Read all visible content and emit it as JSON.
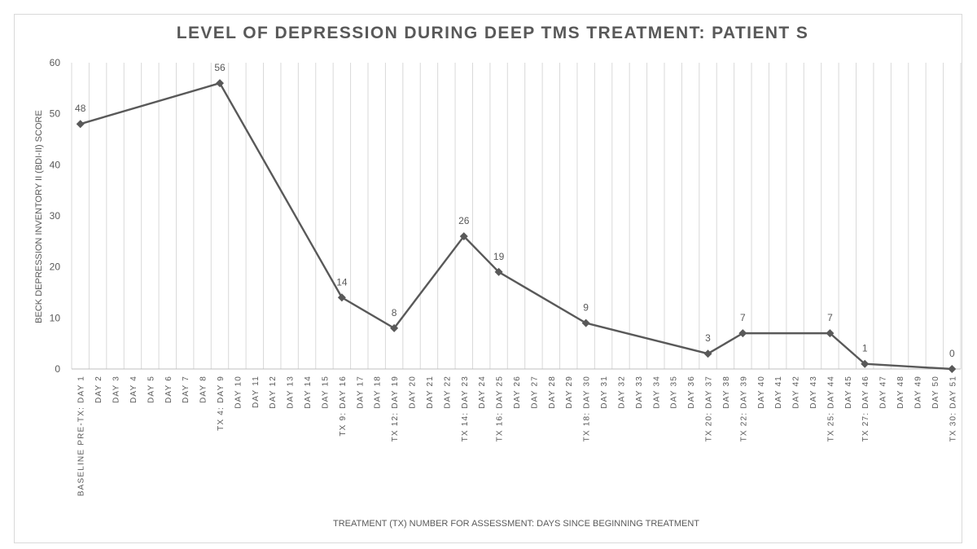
{
  "chart_data": {
    "type": "line",
    "title": "LEVEL OF DEPRESSION DURING DEEP TMS TREATMENT: PATIENT S",
    "xlabel": "TREATMENT (TX) NUMBER FOR ASSESSMENT: DAYS SINCE BEGINNING TREATMENT",
    "ylabel": "BECK DEPRESSION INVENTORY II (BDI-II) SCORE",
    "ylim": [
      0,
      60
    ],
    "yticks": [
      0,
      10,
      20,
      30,
      40,
      50,
      60
    ],
    "grid": "vertical",
    "legend": "none",
    "categories": [
      "BASELINE PRE-TX: DAY 1",
      "DAY 2",
      "DAY 3",
      "DAY 4",
      "DAY 5",
      "DAY 6",
      "DAY 7",
      "DAY 8",
      "TX 4: DAY 9",
      "DAY 10",
      "DAY 11",
      "DAY 12",
      "DAY 13",
      "DAY 14",
      "DAY 15",
      "TX 9: DAY 16",
      "DAY 17",
      "DAY 18",
      "TX 12: DAY 19",
      "DAY 20",
      "DAY 21",
      "DAY 22",
      "TX 14: DAY 23",
      "DAY 24",
      "TX 16: DAY 25",
      "DAY 26",
      "DAY 27",
      "DAY 28",
      "DAY 29",
      "TX 18: DAY 30",
      "DAY 31",
      "DAY 32",
      "DAY 33",
      "DAY 34",
      "DAY 35",
      "DAY 36",
      "TX 20: DAY 37",
      "DAY 38",
      "TX 22: DAY 39",
      "DAY 40",
      "DAY 41",
      "DAY 42",
      "DAY 43",
      "TX 25: DAY 44",
      "DAY 45",
      "TX 27: DAY 46",
      "DAY 47",
      "DAY 48",
      "DAY 49",
      "DAY 50",
      "TX 30: DAY 51"
    ],
    "series": [
      {
        "name": "BDI-II Score",
        "color": "#595959",
        "points": [
          {
            "category": "BASELINE PRE-TX: DAY 1",
            "value": 48
          },
          {
            "category": "TX 4: DAY 9",
            "value": 56
          },
          {
            "category": "TX 9: DAY 16",
            "value": 14
          },
          {
            "category": "TX 12: DAY 19",
            "value": 8
          },
          {
            "category": "TX 14: DAY 23",
            "value": 26
          },
          {
            "category": "TX 16: DAY 25",
            "value": 19
          },
          {
            "category": "TX 18: DAY 30",
            "value": 9
          },
          {
            "category": "TX 20: DAY 37",
            "value": 3
          },
          {
            "category": "TX 22: DAY 39",
            "value": 7
          },
          {
            "category": "TX 25: DAY 44",
            "value": 7
          },
          {
            "category": "TX 27: DAY 46",
            "value": 1
          },
          {
            "category": "TX 30: DAY 51",
            "value": 0
          }
        ]
      }
    ],
    "colors": {
      "line": "#595959",
      "grid": "#d9d9d9",
      "axis": "#bfbfbf",
      "text": "#595959"
    }
  }
}
